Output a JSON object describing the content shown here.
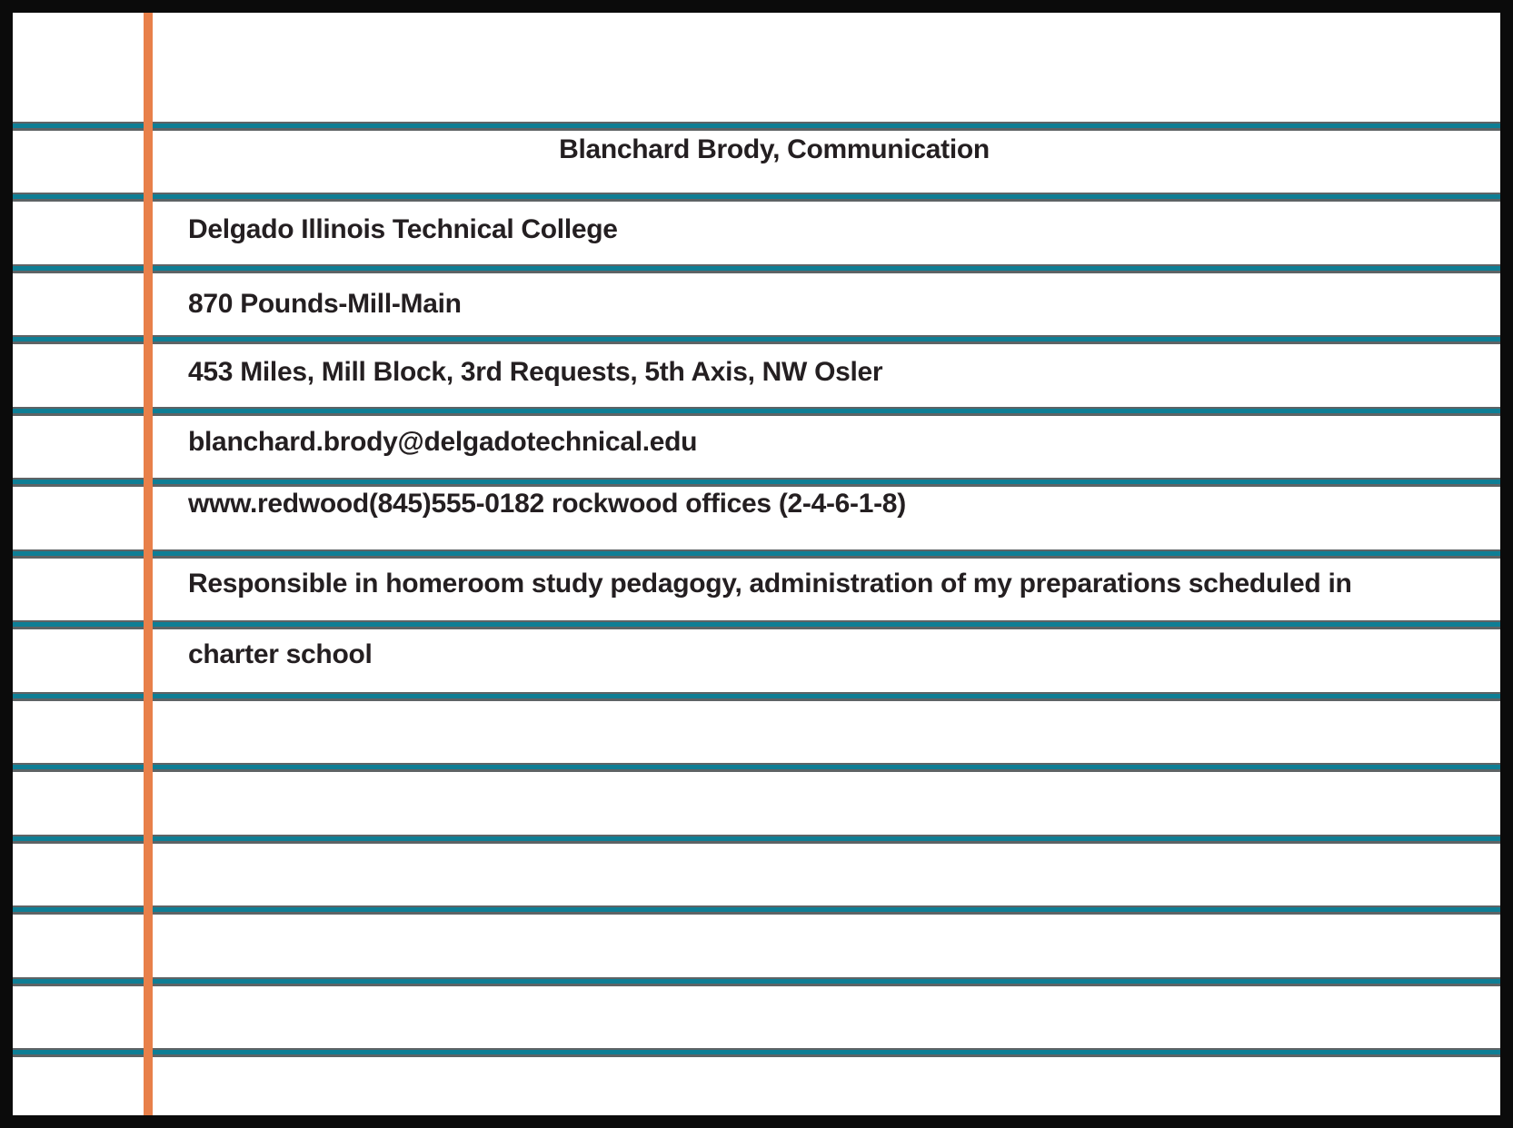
{
  "page": {
    "type": "ruled-notebook-note",
    "colors": {
      "background": "#ffffff",
      "frame": "#0b0b0b",
      "rule_teal": "#0e7e95",
      "rule_gray": "#5e6365",
      "margin_orange": "#e8804a",
      "text": "#241f21"
    },
    "title": "Blanchard Brody, Communication",
    "lines": [
      "Delgado Illinois Technical College",
      "870 Pounds-Mill-Main",
      "453 Miles, Mill Block, 3rd Requests, 5th Axis, NW Osler",
      "blanchard.brody@delgadotechnical.edu",
      "www.redwood(845)555-0182 rockwood offices (2-4-6-1-8)",
      "Responsible in homeroom study pedagogy, administration of my preparations scheduled in",
      "charter school"
    ]
  }
}
